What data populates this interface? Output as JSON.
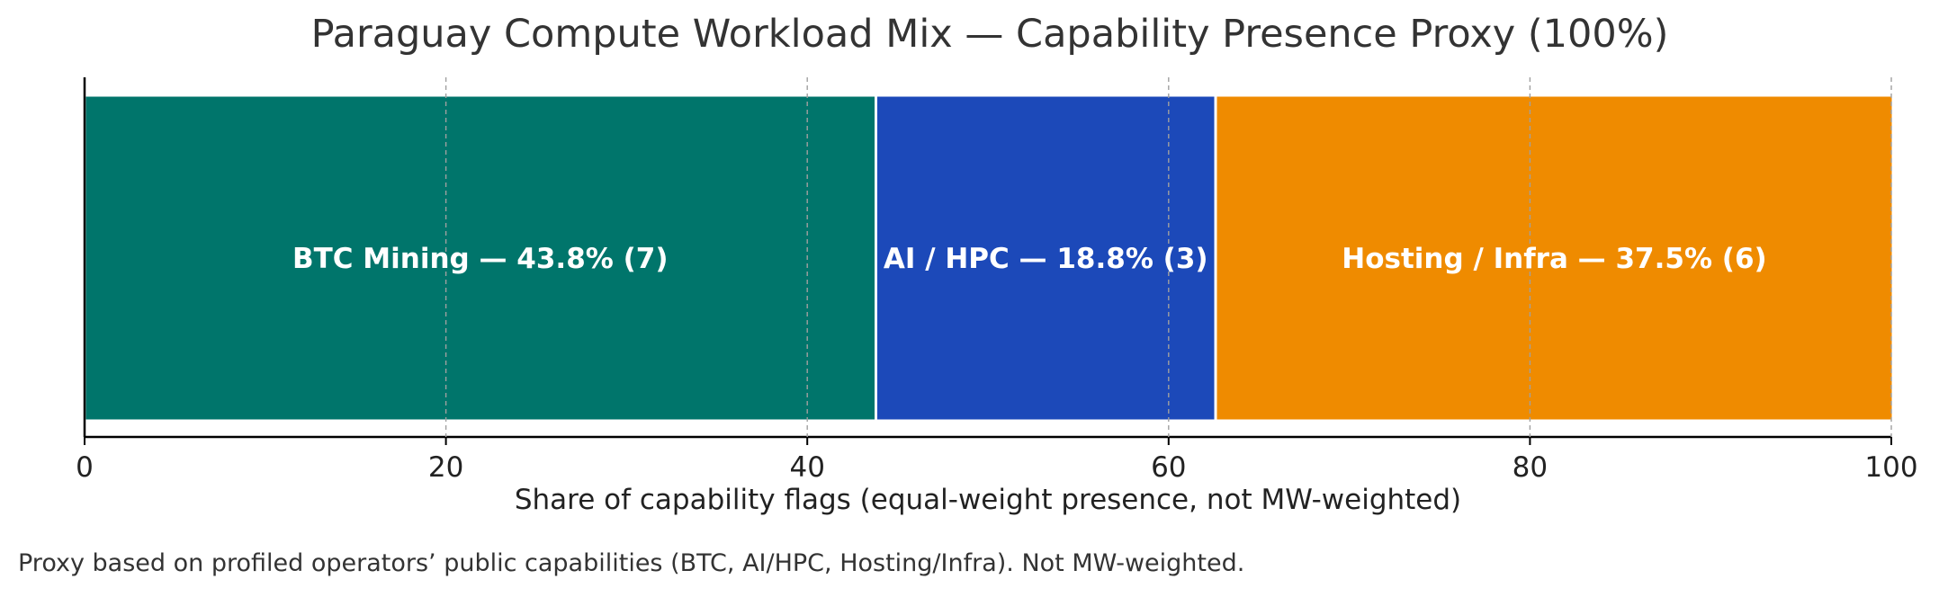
{
  "chart_data": {
    "type": "bar",
    "orientation": "horizontal",
    "stacked": true,
    "title": "Paraguay Compute Workload Mix — Capability Presence Proxy (100%)",
    "xlabel": "Share of capability flags (equal-weight presence, not MW-weighted)",
    "ylabel": "",
    "xlim": [
      0,
      100
    ],
    "xticks": [
      0,
      20,
      40,
      60,
      80,
      100
    ],
    "grid": true,
    "series": [
      {
        "name": "BTC Mining",
        "value": 43.8,
        "count": 7,
        "color": "#00756b",
        "label": "BTC Mining — 43.8% (7)"
      },
      {
        "name": "AI / HPC",
        "value": 18.8,
        "count": 3,
        "color": "#1c49b9",
        "label": "AI / HPC — 18.8% (3)"
      },
      {
        "name": "Hosting / Infra",
        "value": 37.5,
        "count": 6,
        "color": "#ef8b00",
        "label": "Hosting / Infra — 37.5% (6)"
      }
    ]
  },
  "footnote": "Proxy based on profiled operators’ public capabilities (BTC, AI/HPC, Hosting/Infra). Not MW-weighted."
}
